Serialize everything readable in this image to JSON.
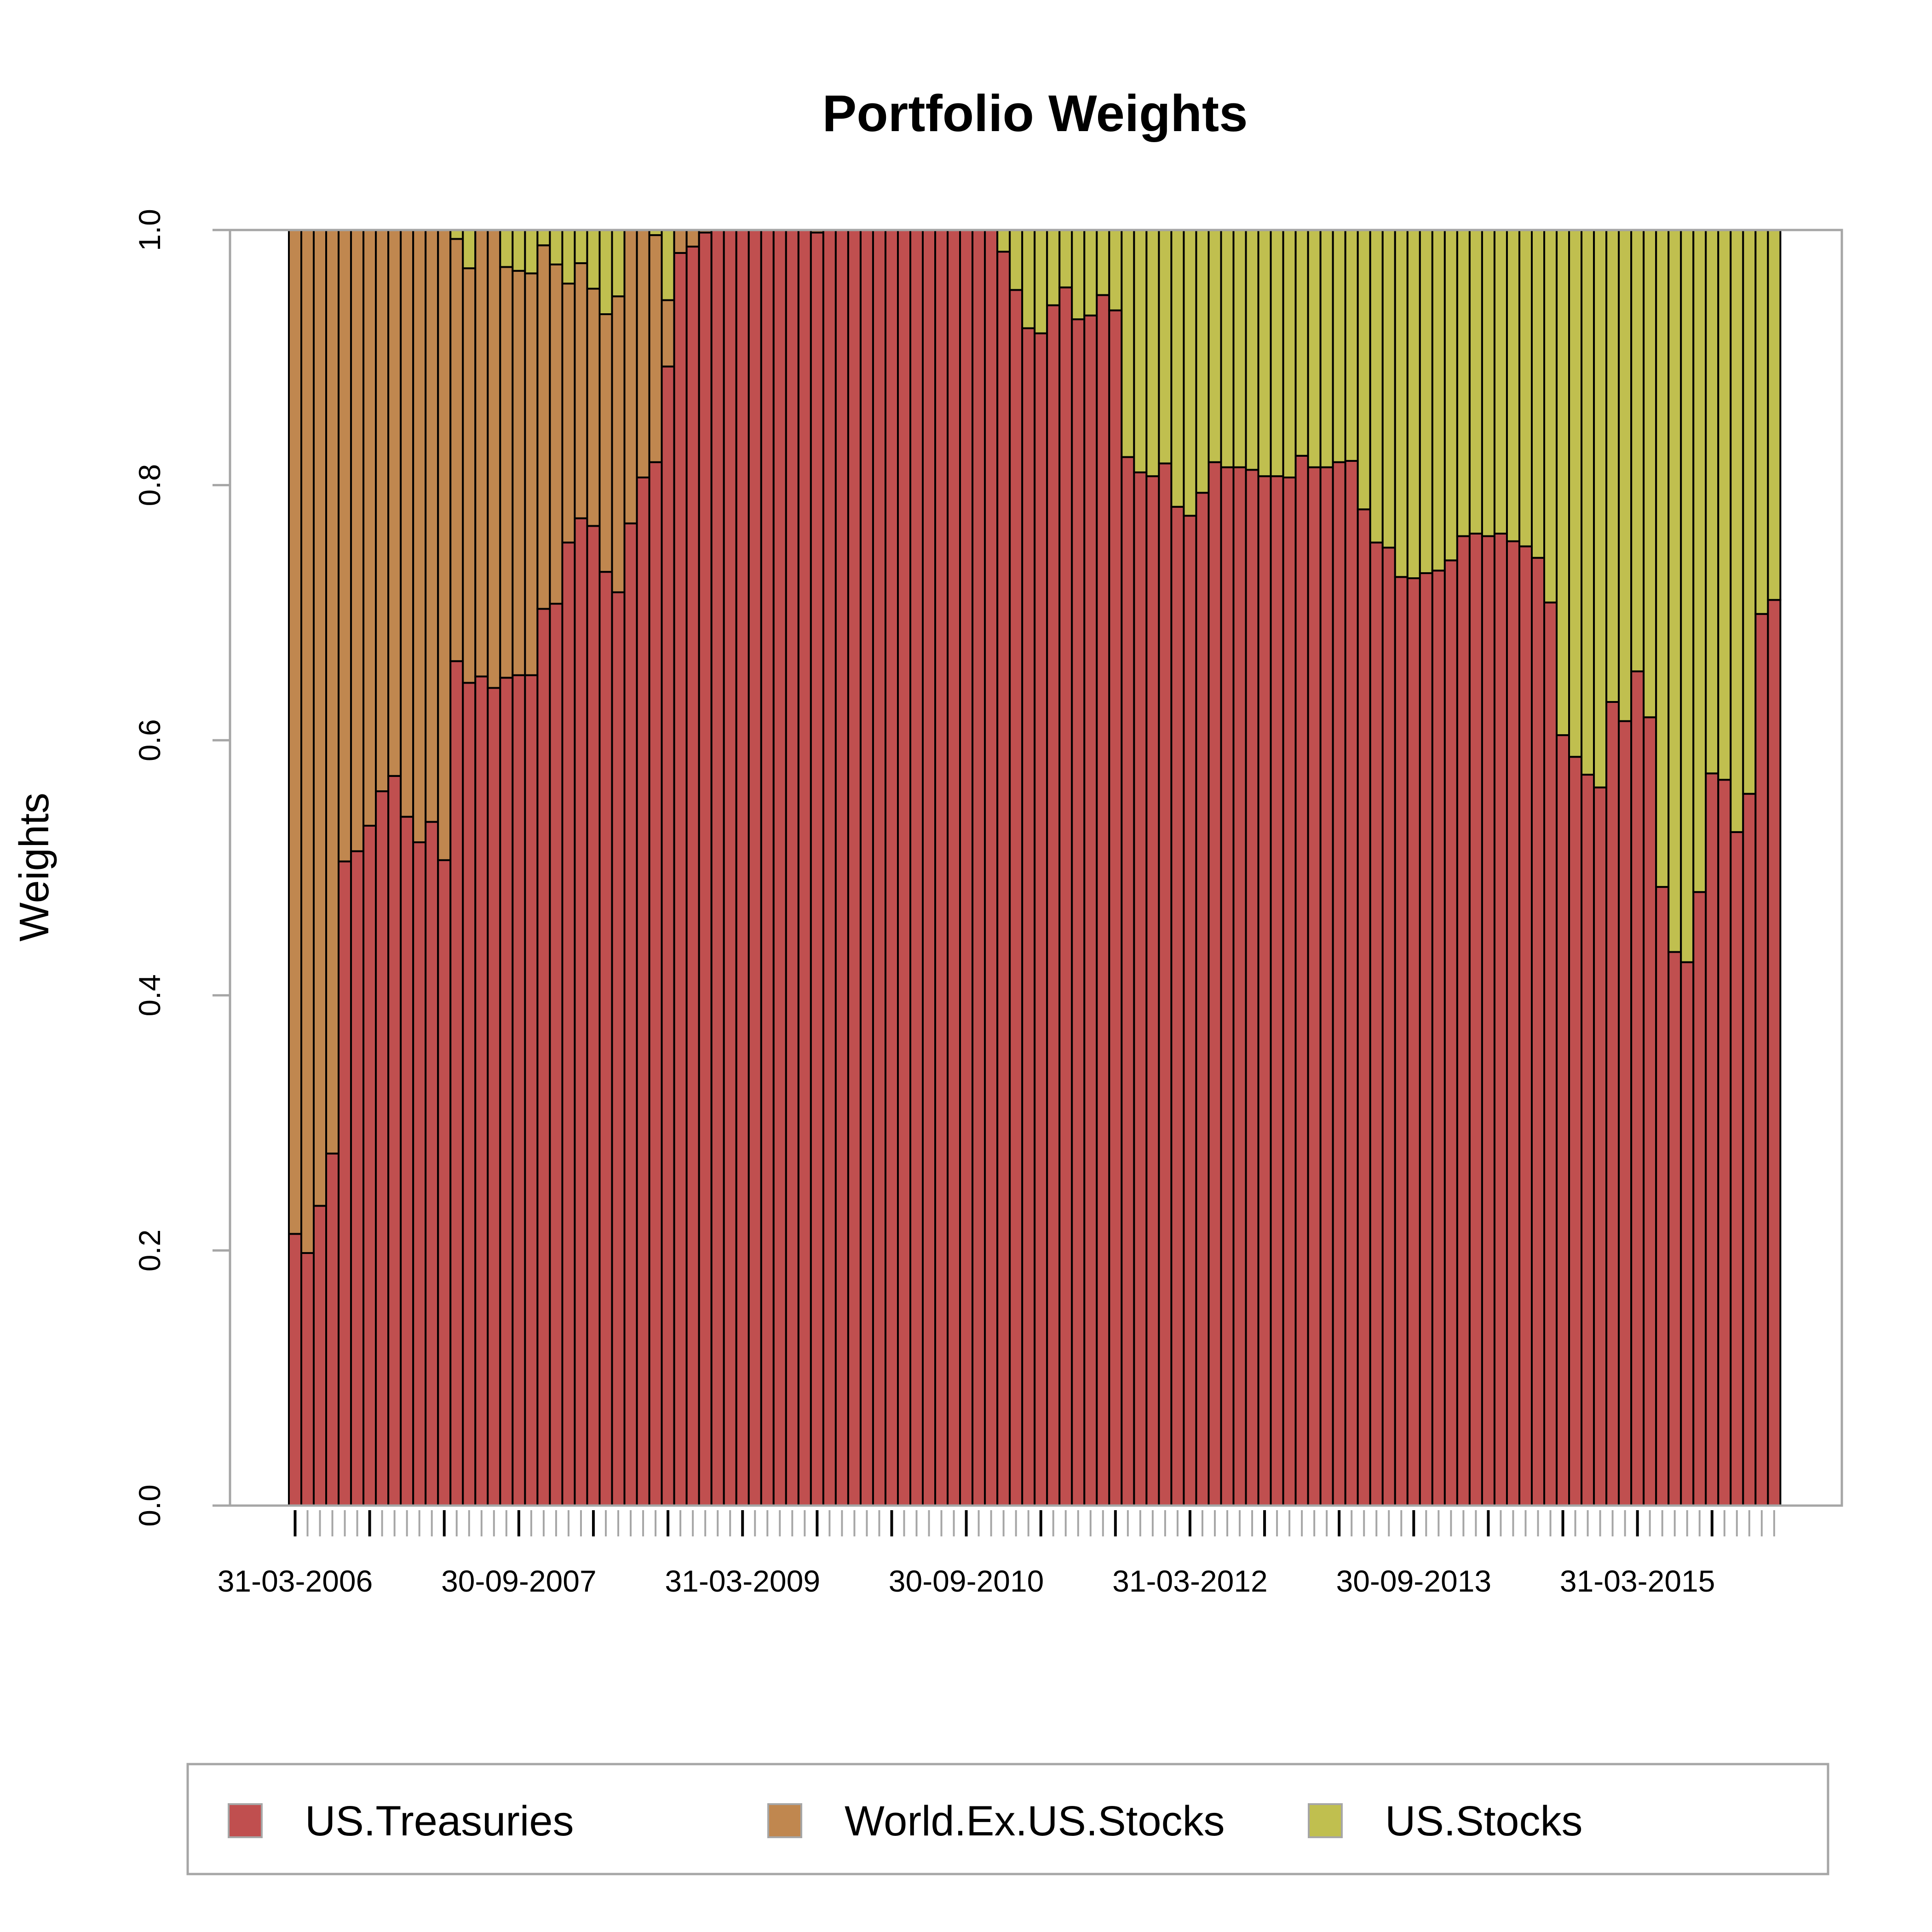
{
  "chart_data": {
    "type": "bar",
    "stacked": true,
    "title": "Portfolio Weights",
    "xlabel": "",
    "ylabel": "Weights",
    "ylim": [
      0,
      1
    ],
    "y_ticks": [
      "0.0",
      "0.2",
      "0.4",
      "0.6",
      "0.8",
      "1.0"
    ],
    "x_start": "31-03-2006",
    "x_frequency": "monthly",
    "n_bars": 120,
    "x_tick_labels": [
      {
        "bar": 1,
        "label": "31-03-2006"
      },
      {
        "bar": 19,
        "label": "30-09-2007"
      },
      {
        "bar": 37,
        "label": "31-03-2009"
      },
      {
        "bar": 55,
        "label": "30-09-2010"
      },
      {
        "bar": 73,
        "label": "31-03-2012"
      },
      {
        "bar": 91,
        "label": "30-09-2013"
      },
      {
        "bar": 109,
        "label": "31-03-2015"
      }
    ],
    "legend_position": "bottom",
    "series": [
      {
        "name": "US.Treasuries",
        "color": "#c04f4f",
        "values": [
          0.213,
          0.198,
          0.235,
          0.276,
          0.505,
          0.513,
          0.533,
          0.56,
          0.572,
          0.54,
          0.52,
          0.536,
          0.506,
          0.662,
          0.645,
          0.65,
          0.641,
          0.649,
          0.651,
          0.651,
          0.703,
          0.707,
          0.755,
          0.774,
          0.768,
          0.732,
          0.716,
          0.77,
          0.806,
          0.818,
          0.893,
          0.982,
          0.987,
          0.998,
          1,
          1,
          1,
          1,
          1,
          1,
          1,
          1,
          0.998,
          1,
          1,
          1,
          1,
          1,
          1,
          1,
          1,
          1,
          1,
          1,
          1,
          1,
          1,
          0.983,
          0.953,
          0.923,
          0.919,
          0.941,
          0.955,
          0.93,
          0.933,
          0.949,
          0.937,
          0.822,
          0.81,
          0.807,
          0.817,
          0.783,
          0.776,
          0.794,
          0.818,
          0.814,
          0.814,
          0.812,
          0.807,
          0.807,
          0.806,
          0.823,
          0.814,
          0.814,
          0.818,
          0.819,
          0.781,
          0.755,
          0.751,
          0.728,
          0.727,
          0.731,
          0.733,
          0.741,
          0.76,
          0.762,
          0.76,
          0.762,
          0.756,
          0.752,
          0.743,
          0.708,
          0.604,
          0.587,
          0.573,
          0.563,
          0.63,
          0.615,
          0.654,
          0.618,
          0.485,
          0.434,
          0.426,
          0.481,
          0.574,
          0.569,
          0.528,
          0.558,
          0.699,
          0.71
        ]
      },
      {
        "name": "World.Ex.US.Stocks",
        "color": "#c0874f",
        "values": [
          0.787,
          0.802,
          0.765,
          0.724,
          0.495,
          0.487,
          0.467,
          0.44,
          0.428,
          0.46,
          0.48,
          0.464,
          0.494,
          0.331,
          0.325,
          0.35,
          0.359,
          0.322,
          0.317,
          0.315,
          0.285,
          0.266,
          0.203,
          0.2,
          0.186,
          0.202,
          0.232,
          0.23,
          0.194,
          0.178,
          0.052,
          0.018,
          0.013,
          0.002,
          0,
          0,
          0,
          0,
          0,
          0,
          0,
          0,
          0.002,
          0,
          0,
          0,
          0,
          0,
          0,
          0,
          0,
          0,
          0,
          0,
          0,
          0,
          0,
          0,
          0,
          0,
          0,
          0,
          0,
          0,
          0,
          0,
          0,
          0,
          0,
          0,
          0,
          0,
          0,
          0,
          0,
          0,
          0,
          0,
          0,
          0,
          0,
          0,
          0,
          0,
          0,
          0,
          0,
          0,
          0,
          0,
          0,
          0,
          0,
          0,
          0,
          0,
          0,
          0,
          0,
          0,
          0,
          0,
          0,
          0,
          0,
          0,
          0,
          0,
          0,
          0,
          0,
          0,
          0,
          0,
          0,
          0,
          0,
          0,
          0,
          0
        ]
      },
      {
        "name": "US.Stocks",
        "color": "#c0bf4f",
        "values": [
          0,
          0,
          0,
          0,
          0,
          0,
          0,
          0,
          0,
          0,
          0,
          0,
          0,
          0.007,
          0.03,
          0,
          0,
          0.029,
          0.032,
          0.034,
          0.012,
          0.027,
          0.042,
          0.026,
          0.046,
          0.066,
          0.052,
          0,
          0,
          0.004,
          0.055,
          0,
          0,
          0,
          0,
          0,
          0,
          0,
          0,
          0,
          0,
          0,
          0,
          0,
          0,
          0,
          0,
          0,
          0,
          0,
          0,
          0,
          0,
          0,
          0,
          0,
          0,
          0.017,
          0.047,
          0.077,
          0.081,
          0.059,
          0.045,
          0.07,
          0.067,
          0.051,
          0.063,
          0.178,
          0.19,
          0.193,
          0.183,
          0.217,
          0.224,
          0.206,
          0.182,
          0.186,
          0.186,
          0.188,
          0.193,
          0.193,
          0.194,
          0.177,
          0.186,
          0.186,
          0.182,
          0.181,
          0.219,
          0.245,
          0.249,
          0.272,
          0.273,
          0.269,
          0.267,
          0.259,
          0.24,
          0.238,
          0.24,
          0.238,
          0.244,
          0.248,
          0.257,
          0.292,
          0.396,
          0.413,
          0.427,
          0.437,
          0.37,
          0.385,
          0.346,
          0.382,
          0.515,
          0.566,
          0.574,
          0.519,
          0.426,
          0.431,
          0.472,
          0.442,
          0.301,
          0.29
        ]
      }
    ]
  }
}
